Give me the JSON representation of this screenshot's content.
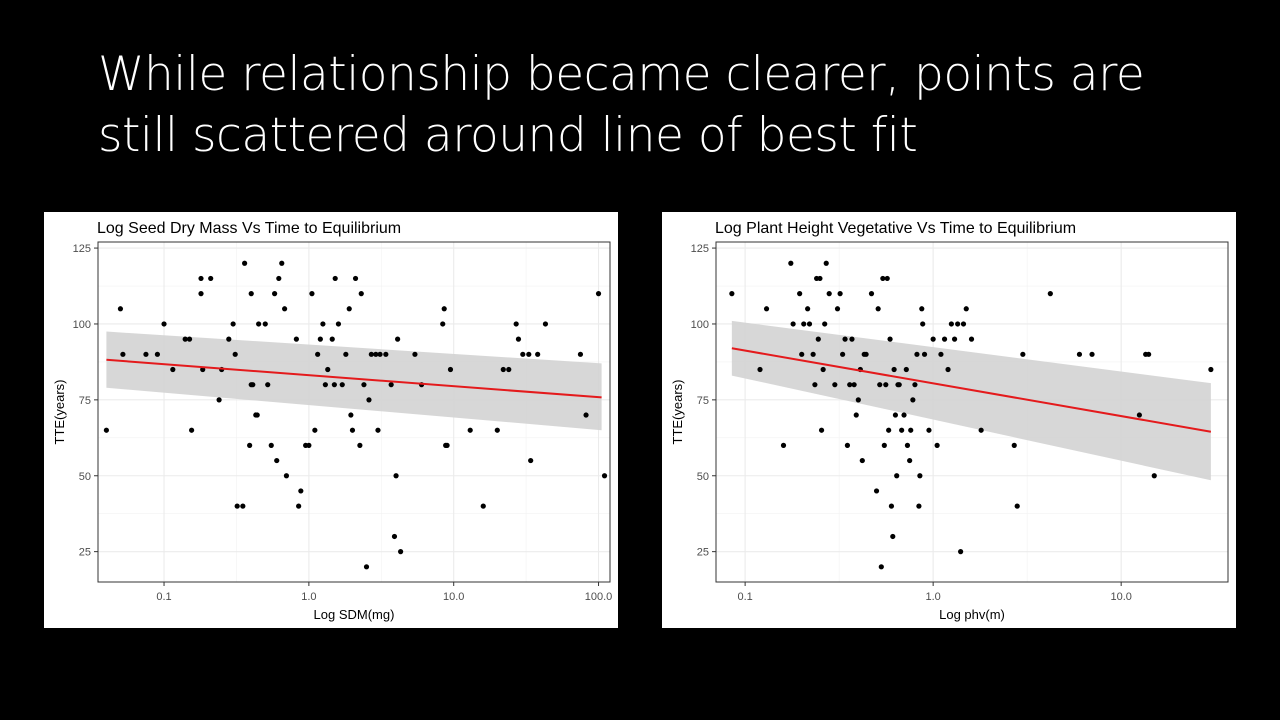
{
  "slide": {
    "title_lines": [
      "While relationship became clearer, points are",
      "still scattered around line of best fit"
    ]
  },
  "colors": {
    "background": "#000000",
    "panel": "#ffffff",
    "points": "#000000",
    "fit_line": "#e41a1c",
    "ci_band": "#d3d3d3",
    "grid": "#ebebeb"
  },
  "chart_data": [
    {
      "type": "scatter",
      "title": "Log Seed Dry Mass Vs Time to Equilibrium",
      "xlabel": "Log SDM(mg)",
      "ylabel": "TTE(years)",
      "x_scale": "log10",
      "xlim": [
        0.035,
        120
      ],
      "ylim": [
        15,
        127
      ],
      "x_ticks": [
        0.1,
        1.0,
        10.0,
        100.0
      ],
      "x_tick_labels": [
        "0.1",
        "1.0",
        "10.0",
        "100.0"
      ],
      "y_ticks": [
        25,
        50,
        75,
        100,
        125
      ],
      "y_tick_labels": [
        "25",
        "50",
        "75",
        "100",
        "125"
      ],
      "grid": true,
      "fit": {
        "x": [
          0.04,
          105
        ],
        "y": [
          88.2,
          75.8
        ]
      },
      "ci": {
        "x": [
          0.04,
          105
        ],
        "upper": [
          97.5,
          87
        ],
        "lower": [
          79,
          65
        ]
      },
      "points": [
        [
          0.04,
          65
        ],
        [
          0.05,
          105
        ],
        [
          0.052,
          90
        ],
        [
          0.075,
          90
        ],
        [
          0.09,
          90
        ],
        [
          0.1,
          100
        ],
        [
          0.115,
          85
        ],
        [
          0.14,
          95
        ],
        [
          0.15,
          95
        ],
        [
          0.155,
          65
        ],
        [
          0.18,
          110
        ],
        [
          0.18,
          115
        ],
        [
          0.185,
          85
        ],
        [
          0.21,
          115
        ],
        [
          0.24,
          75
        ],
        [
          0.25,
          85
        ],
        [
          0.28,
          95
        ],
        [
          0.3,
          100
        ],
        [
          0.31,
          90
        ],
        [
          0.32,
          40
        ],
        [
          0.35,
          40
        ],
        [
          0.36,
          120
        ],
        [
          0.39,
          60
        ],
        [
          0.4,
          110
        ],
        [
          0.4,
          80
        ],
        [
          0.41,
          80
        ],
        [
          0.43,
          70
        ],
        [
          0.44,
          70
        ],
        [
          0.45,
          100
        ],
        [
          0.5,
          100
        ],
        [
          0.52,
          80
        ],
        [
          0.55,
          60
        ],
        [
          0.58,
          110
        ],
        [
          0.6,
          55
        ],
        [
          0.62,
          115
        ],
        [
          0.65,
          120
        ],
        [
          0.68,
          105
        ],
        [
          0.7,
          50
        ],
        [
          0.82,
          95
        ],
        [
          0.85,
          40
        ],
        [
          0.88,
          45
        ],
        [
          0.95,
          60
        ],
        [
          1.0,
          60
        ],
        [
          1.05,
          110
        ],
        [
          1.1,
          65
        ],
        [
          1.15,
          90
        ],
        [
          1.2,
          95
        ],
        [
          1.25,
          100
        ],
        [
          1.3,
          80
        ],
        [
          1.35,
          85
        ],
        [
          1.45,
          95
        ],
        [
          1.5,
          80
        ],
        [
          1.52,
          115
        ],
        [
          1.6,
          100
        ],
        [
          1.7,
          80
        ],
        [
          1.8,
          90
        ],
        [
          1.9,
          105
        ],
        [
          1.95,
          70
        ],
        [
          2.0,
          65
        ],
        [
          2.1,
          115
        ],
        [
          2.25,
          60
        ],
        [
          2.3,
          110
        ],
        [
          2.4,
          80
        ],
        [
          2.5,
          20
        ],
        [
          2.6,
          75
        ],
        [
          2.7,
          90
        ],
        [
          2.9,
          90
        ],
        [
          3.0,
          65
        ],
        [
          3.1,
          90
        ],
        [
          3.4,
          90
        ],
        [
          3.7,
          80
        ],
        [
          3.9,
          30
        ],
        [
          4.0,
          50
        ],
        [
          4.1,
          95
        ],
        [
          4.3,
          25
        ],
        [
          5.4,
          90
        ],
        [
          6.0,
          80
        ],
        [
          8.4,
          100
        ],
        [
          8.6,
          105
        ],
        [
          8.8,
          60
        ],
        [
          9.0,
          60
        ],
        [
          9.5,
          85
        ],
        [
          13,
          65
        ],
        [
          16,
          40
        ],
        [
          20,
          65
        ],
        [
          22,
          85
        ],
        [
          24,
          85
        ],
        [
          27,
          100
        ],
        [
          28,
          95
        ],
        [
          30,
          90
        ],
        [
          33,
          90
        ],
        [
          34,
          55
        ],
        [
          38,
          90
        ],
        [
          43,
          100
        ],
        [
          75,
          90
        ],
        [
          82,
          70
        ],
        [
          100,
          110
        ],
        [
          110,
          50
        ]
      ]
    },
    {
      "type": "scatter",
      "title": "Log Plant Height Vegetative Vs Time to Equilibrium",
      "xlabel": "Log phv(m)",
      "ylabel": "TTE(years)",
      "x_scale": "log10",
      "xlim": [
        0.07,
        37
      ],
      "ylim": [
        15,
        127
      ],
      "x_ticks": [
        0.1,
        1.0,
        10.0
      ],
      "x_tick_labels": [
        "0.1",
        "1.0",
        "10.0"
      ],
      "y_ticks": [
        25,
        50,
        75,
        100,
        125
      ],
      "y_tick_labels": [
        "25",
        "50",
        "75",
        "100",
        "125"
      ],
      "grid": true,
      "fit": {
        "x": [
          0.085,
          30
        ],
        "y": [
          92,
          64.5
        ]
      },
      "ci": {
        "x": [
          0.085,
          30
        ],
        "upper": [
          101,
          80.5
        ],
        "lower": [
          83,
          48.5
        ]
      },
      "points": [
        [
          0.085,
          110
        ],
        [
          0.12,
          85
        ],
        [
          0.13,
          105
        ],
        [
          0.16,
          60
        ],
        [
          0.175,
          120
        ],
        [
          0.18,
          100
        ],
        [
          0.195,
          110
        ],
        [
          0.2,
          90
        ],
        [
          0.205,
          100
        ],
        [
          0.215,
          105
        ],
        [
          0.22,
          100
        ],
        [
          0.23,
          90
        ],
        [
          0.235,
          80
        ],
        [
          0.24,
          115
        ],
        [
          0.245,
          95
        ],
        [
          0.25,
          115
        ],
        [
          0.255,
          65
        ],
        [
          0.26,
          85
        ],
        [
          0.265,
          100
        ],
        [
          0.27,
          120
        ],
        [
          0.28,
          110
        ],
        [
          0.3,
          80
        ],
        [
          0.31,
          105
        ],
        [
          0.32,
          110
        ],
        [
          0.33,
          90
        ],
        [
          0.34,
          95
        ],
        [
          0.35,
          60
        ],
        [
          0.36,
          80
        ],
        [
          0.37,
          95
        ],
        [
          0.38,
          80
        ],
        [
          0.39,
          70
        ],
        [
          0.4,
          75
        ],
        [
          0.41,
          85
        ],
        [
          0.42,
          55
        ],
        [
          0.43,
          90
        ],
        [
          0.44,
          90
        ],
        [
          0.47,
          110
        ],
        [
          0.5,
          45
        ],
        [
          0.51,
          105
        ],
        [
          0.52,
          80
        ],
        [
          0.53,
          20
        ],
        [
          0.54,
          115
        ],
        [
          0.55,
          60
        ],
        [
          0.56,
          80
        ],
        [
          0.57,
          115
        ],
        [
          0.58,
          65
        ],
        [
          0.59,
          95
        ],
        [
          0.6,
          40
        ],
        [
          0.61,
          30
        ],
        [
          0.62,
          85
        ],
        [
          0.63,
          70
        ],
        [
          0.64,
          50
        ],
        [
          0.65,
          80
        ],
        [
          0.66,
          80
        ],
        [
          0.68,
          65
        ],
        [
          0.7,
          70
        ],
        [
          0.72,
          85
        ],
        [
          0.73,
          60
        ],
        [
          0.75,
          55
        ],
        [
          0.76,
          65
        ],
        [
          0.78,
          75
        ],
        [
          0.8,
          80
        ],
        [
          0.82,
          90
        ],
        [
          0.84,
          40
        ],
        [
          0.85,
          50
        ],
        [
          0.87,
          105
        ],
        [
          0.88,
          100
        ],
        [
          0.9,
          90
        ],
        [
          0.95,
          65
        ],
        [
          1.0,
          95
        ],
        [
          1.05,
          60
        ],
        [
          1.1,
          90
        ],
        [
          1.15,
          95
        ],
        [
          1.2,
          85
        ],
        [
          1.25,
          100
        ],
        [
          1.3,
          95
        ],
        [
          1.35,
          100
        ],
        [
          1.4,
          25
        ],
        [
          1.45,
          100
        ],
        [
          1.5,
          105
        ],
        [
          1.6,
          95
        ],
        [
          1.8,
          65
        ],
        [
          2.7,
          60
        ],
        [
          2.8,
          40
        ],
        [
          3.0,
          90
        ],
        [
          4.2,
          110
        ],
        [
          6.0,
          90
        ],
        [
          7.0,
          90
        ],
        [
          12.5,
          70
        ],
        [
          13.5,
          90
        ],
        [
          14.0,
          90
        ],
        [
          15.0,
          50
        ],
        [
          30.0,
          85
        ]
      ]
    }
  ]
}
